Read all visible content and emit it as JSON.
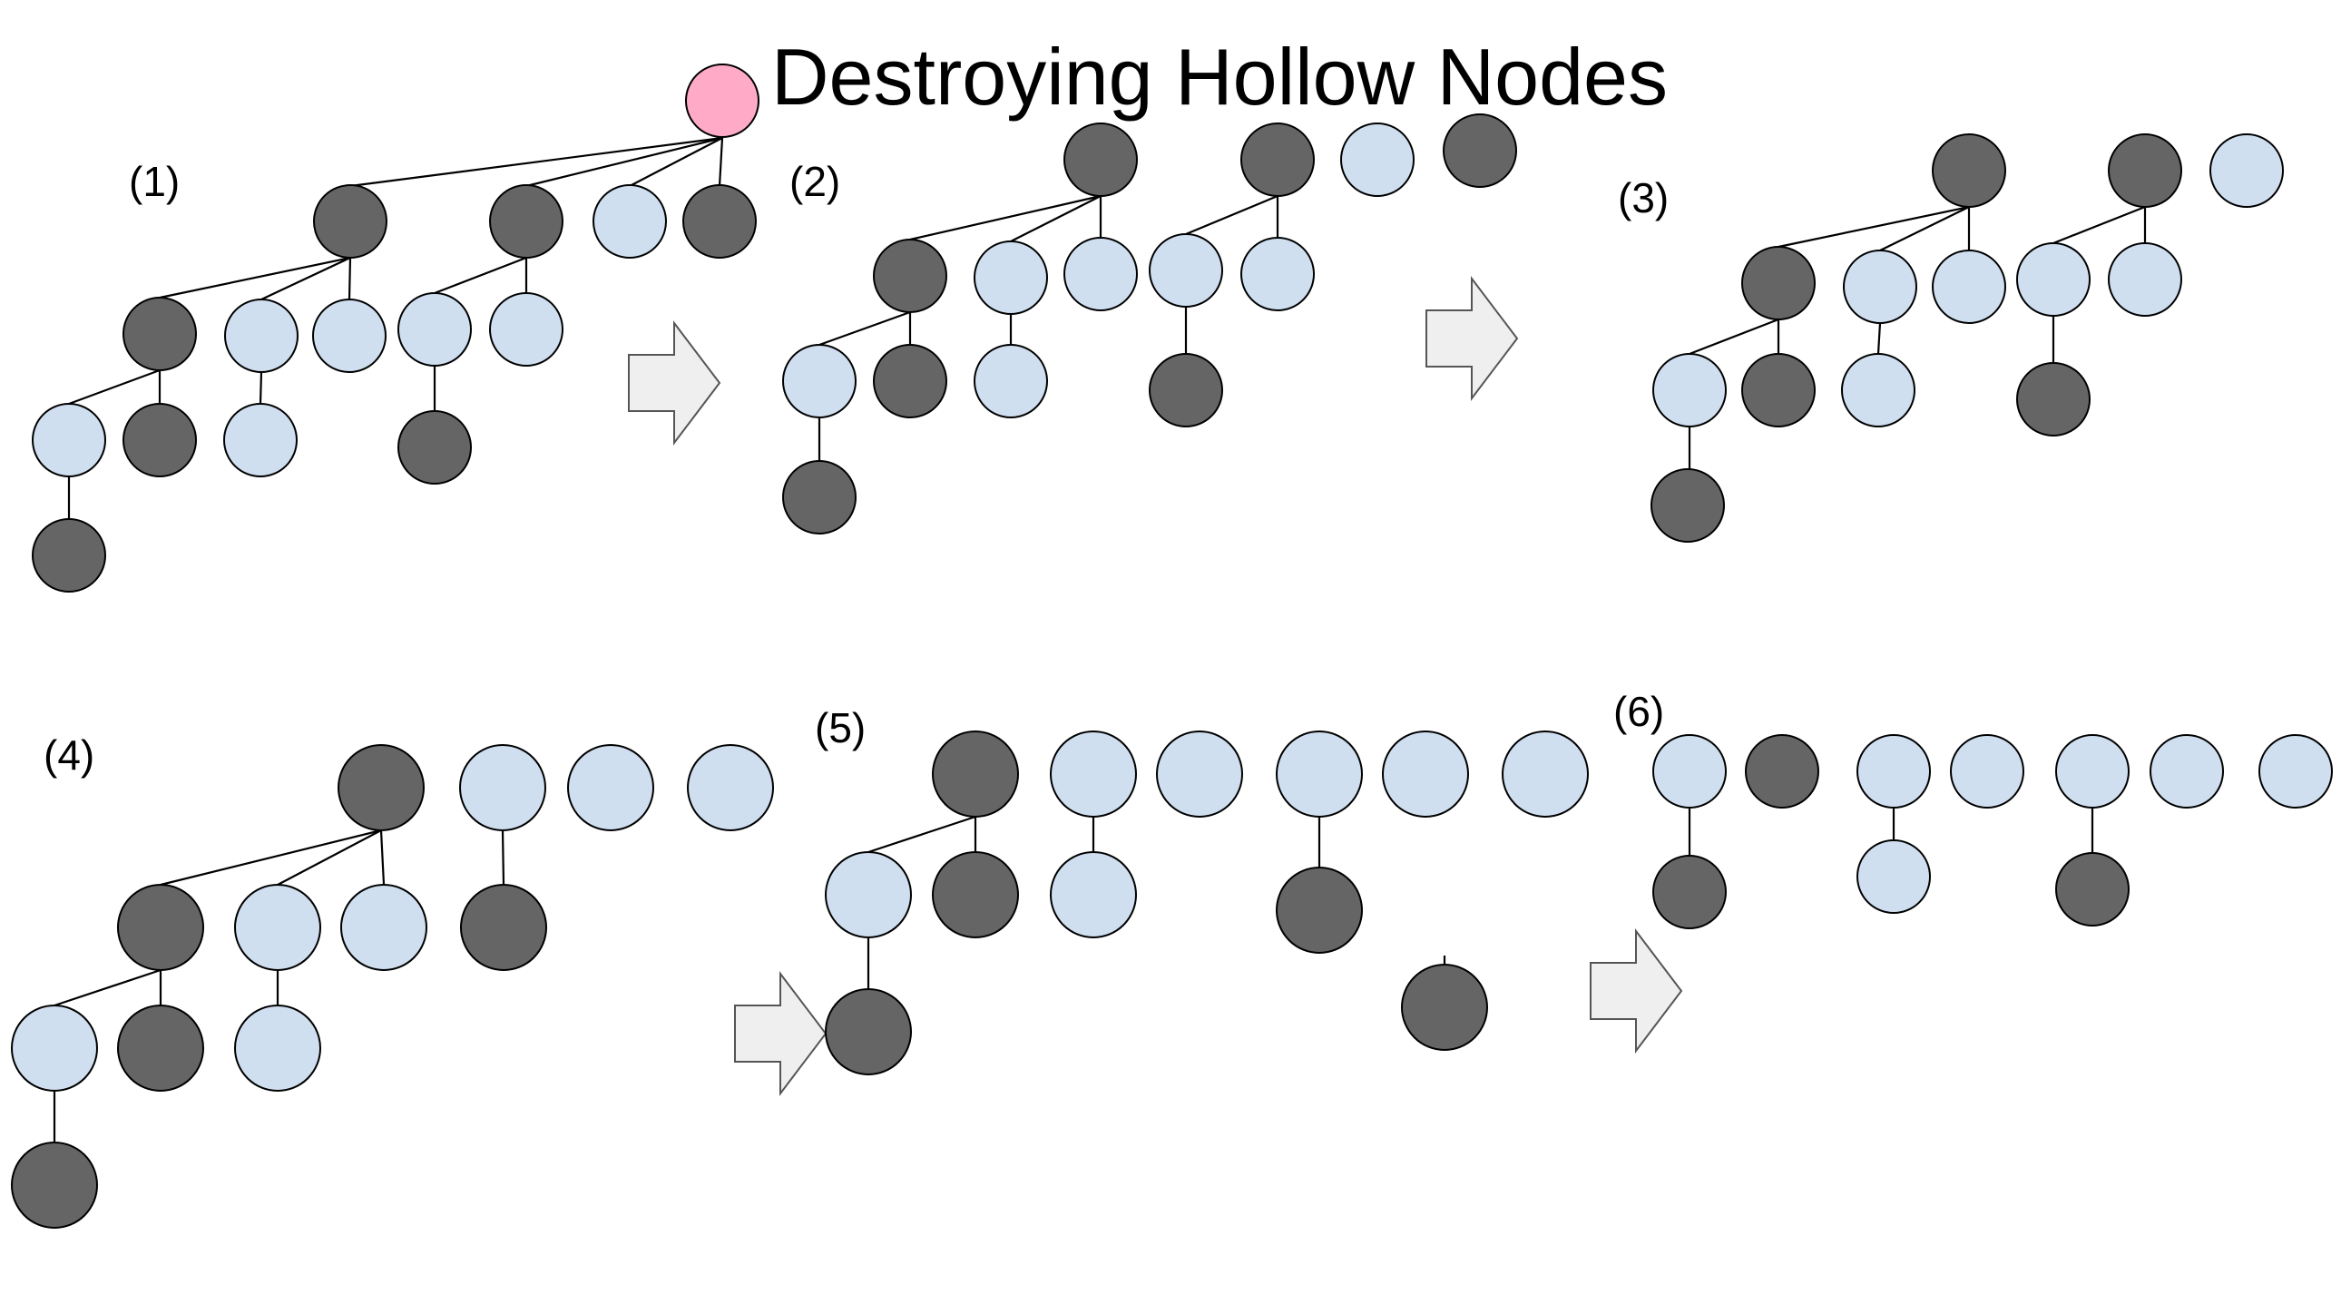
{
  "title": "Destroying Hollow Nodes",
  "panels": [
    {
      "label": "(1)"
    },
    {
      "label": "(2)"
    },
    {
      "label": "(3)"
    },
    {
      "label": "(4)"
    },
    {
      "label": "(5)"
    },
    {
      "label": "(6)"
    }
  ],
  "colors": {
    "hollow_node": "#cfdff0",
    "solid_node": "#656565",
    "root_node": "#ffabc8",
    "arrow_fill": "#efefef"
  }
}
